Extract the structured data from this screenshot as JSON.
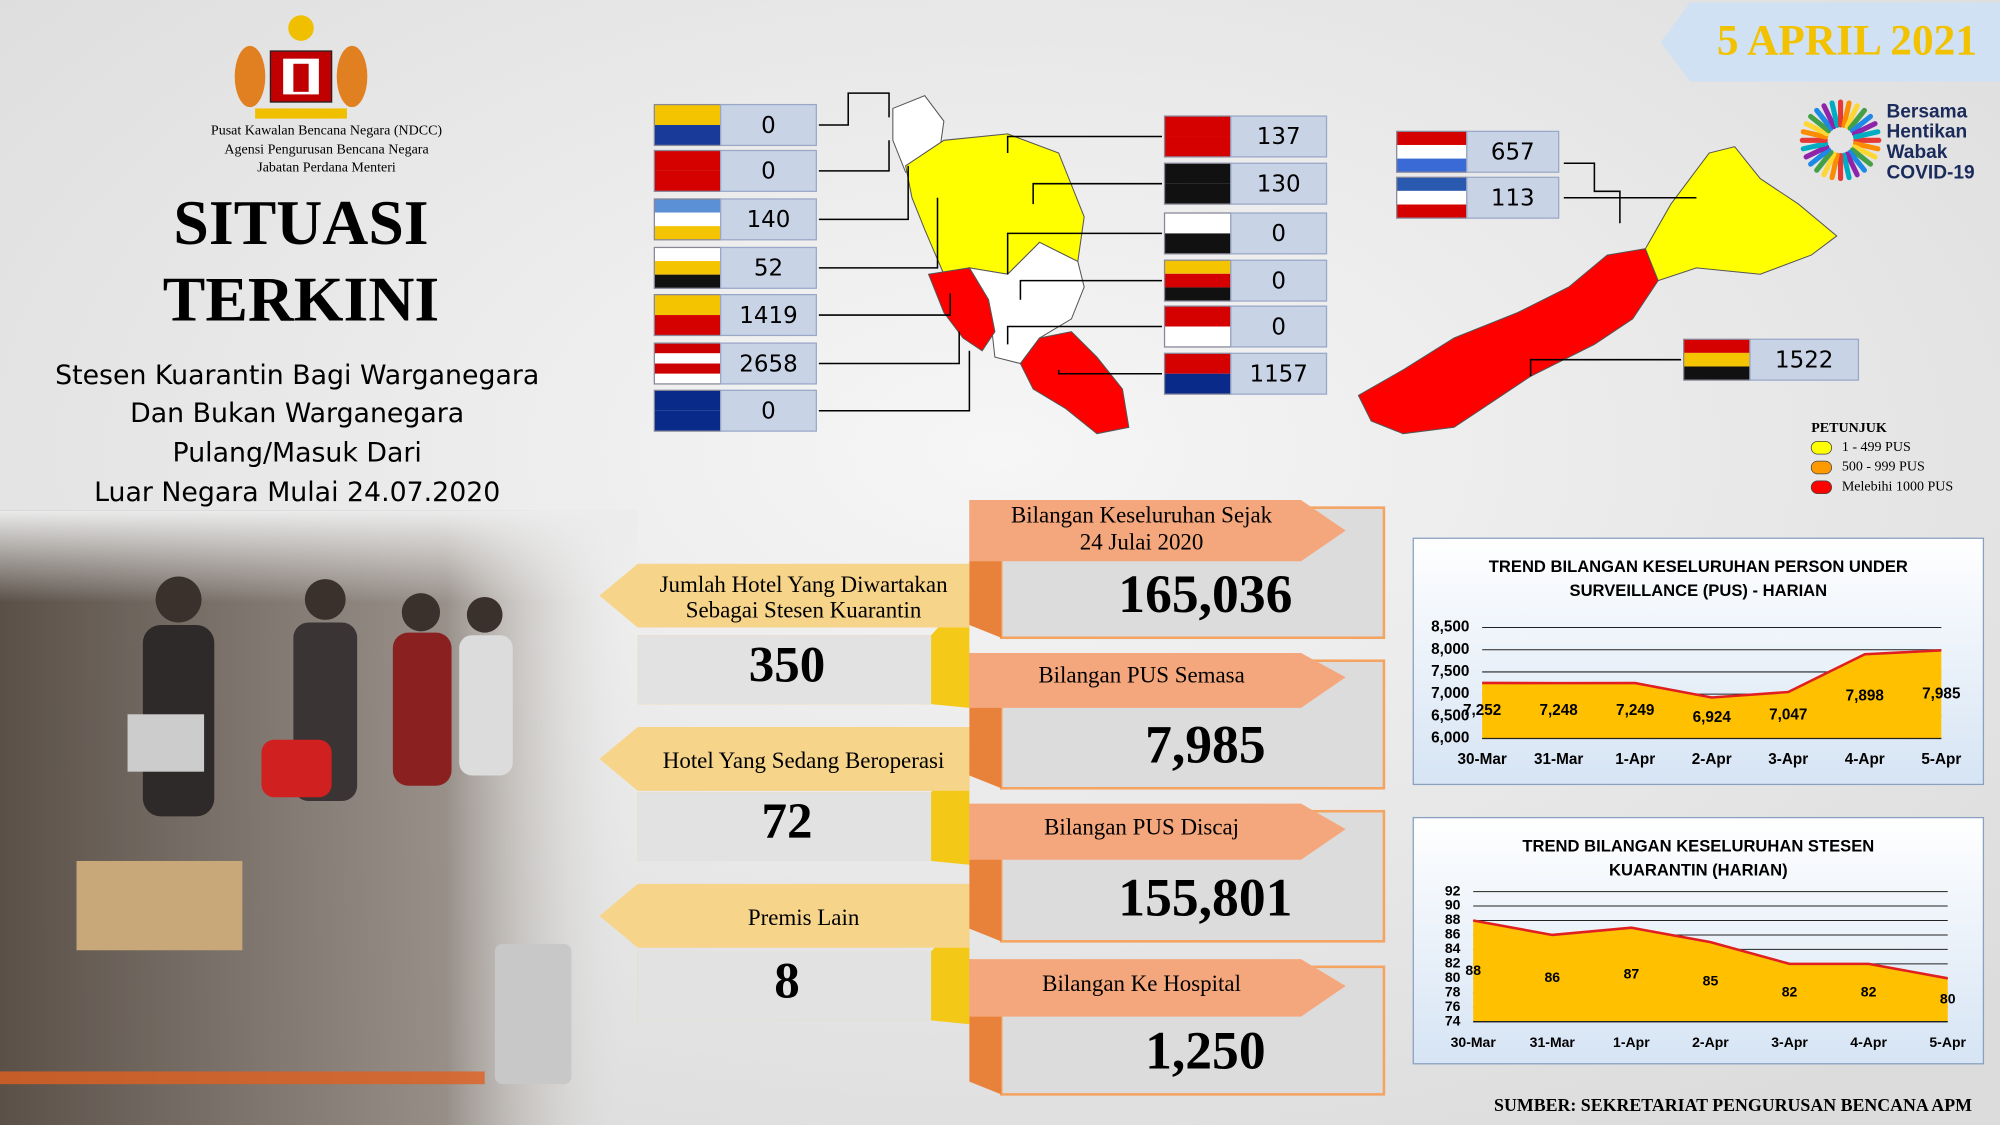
{
  "header": {
    "agency": [
      "Pusat Kawalan Bencana Negara (NDCC)",
      "Agensi Pengurusan Bencana Negara",
      "Jabatan Perdana Menteri"
    ],
    "date": "5 APRIL 2021",
    "title": [
      "SITUASI",
      "TERKINI"
    ],
    "subtitle": [
      "Stesen Kuarantin Bagi Warganegara",
      "Dan Bukan Warganegara",
      "Pulang/Masuk Dari",
      "Luar Negara Mulai 24.07.2020"
    ],
    "campaign": [
      "Bersama",
      "Hentikan",
      "Wabak",
      "COVID-19"
    ]
  },
  "states": {
    "west_left": [
      0,
      0,
      140,
      52,
      1419,
      2658,
      0
    ],
    "west_right": [
      137,
      130,
      0,
      0,
      0,
      1157
    ],
    "east": [
      657,
      113,
      1522
    ]
  },
  "legend": {
    "title": "PETUNJUK",
    "items": [
      {
        "label": "1 - 499 PUS",
        "color": "#ffff00"
      },
      {
        "label": "500 - 999 PUS",
        "color": "#ff9900"
      },
      {
        "label": "Melebihi 1000 PUS",
        "color": "#ff0000"
      }
    ]
  },
  "hotels": [
    {
      "label": [
        "Jumlah Hotel Yang Diwartakan",
        "Sebagai Stesen Kuarantin"
      ],
      "value": 350
    },
    {
      "label": [
        "Hotel Yang Sedang Beroperasi"
      ],
      "value": 72
    },
    {
      "label": [
        "Premis Lain"
      ],
      "value": 8
    }
  ],
  "pus": [
    {
      "label": [
        "Bilangan Keseluruhan Sejak",
        "24 Julai 2020"
      ],
      "value": "165,036"
    },
    {
      "label": [
        "Bilangan PUS Semasa"
      ],
      "value": "7,985"
    },
    {
      "label": [
        "Bilangan PUS Discaj"
      ],
      "value": "155,801"
    },
    {
      "label": [
        "Bilangan Ke Hospital"
      ],
      "value": "1,250"
    }
  ],
  "chart_data": [
    {
      "type": "area",
      "title": [
        "TREND BILANGAN KESELURUHAN PERSON UNDER",
        "SURVEILLANCE (PUS) - HARIAN"
      ],
      "categories": [
        "30-Mar",
        "31-Mar",
        "1-Apr",
        "2-Apr",
        "3-Apr",
        "4-Apr",
        "5-Apr"
      ],
      "values": [
        7252,
        7248,
        7249,
        6924,
        7047,
        7898,
        7985
      ],
      "value_labels": [
        "7,252",
        "7,248",
        "7,249",
        "6,924",
        "7,047",
        "7,898",
        "7,985"
      ],
      "color": "#ffc000",
      "line_color": "#e02020",
      "ylim": [
        6000,
        8500
      ],
      "yticks": [
        {
          "value": 6000,
          "label": "6,000"
        },
        {
          "value": 6500,
          "label": "6,500"
        },
        {
          "value": 7000,
          "label": "7,000"
        },
        {
          "value": 7500,
          "label": "7,500"
        },
        {
          "value": 8000,
          "label": "8,000"
        },
        {
          "value": 8500,
          "label": "8,500"
        }
      ],
      "grid": true
    },
    {
      "type": "area",
      "title": [
        "TREND BILANGAN KESELURUHAN STESEN",
        "KUARANTIN (HARIAN)"
      ],
      "categories": [
        "30-Mar",
        "31-Mar",
        "1-Apr",
        "2-Apr",
        "3-Apr",
        "4-Apr",
        "5-Apr"
      ],
      "values": [
        88,
        86,
        87,
        85,
        82,
        82,
        80
      ],
      "color": "#ffc000",
      "line_color": "#e02020",
      "ylim": [
        74,
        92
      ],
      "yticks": [
        74,
        76,
        78,
        80,
        82,
        84,
        86,
        88,
        90,
        92
      ],
      "grid": true
    }
  ],
  "source": "SUMBER: SEKRETARIAT PENGURUSAN BENCANA APM"
}
